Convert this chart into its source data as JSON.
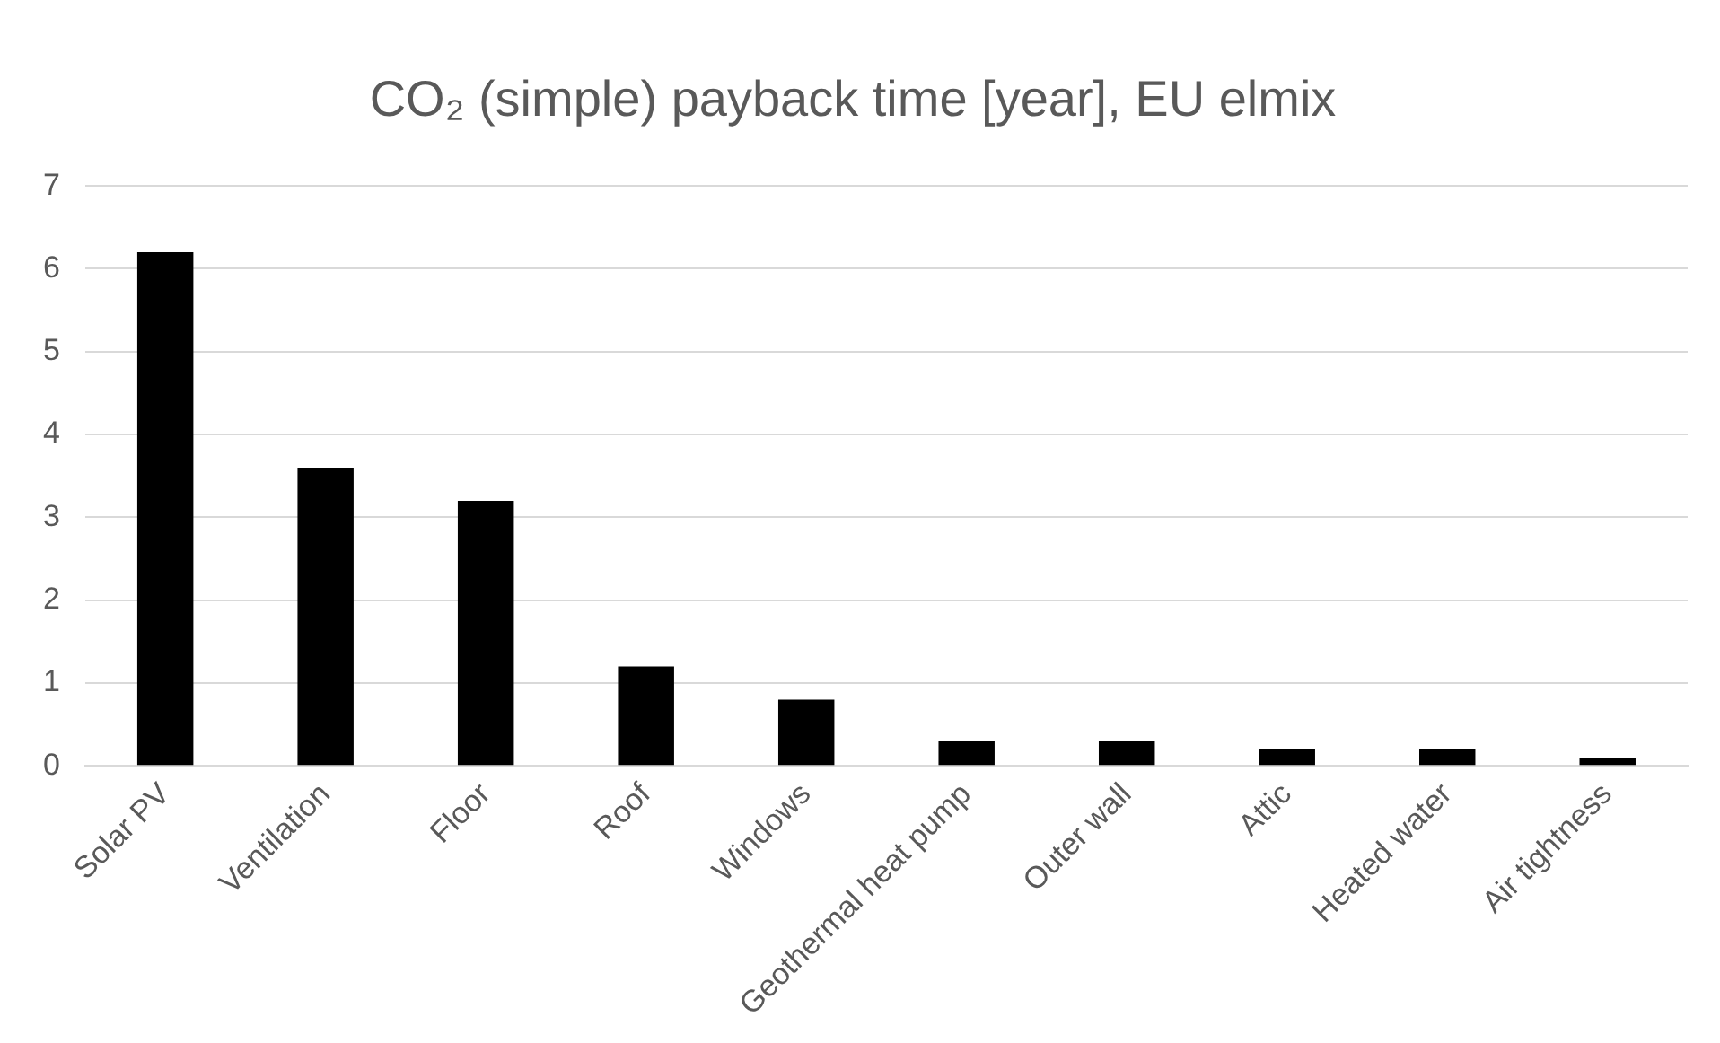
{
  "chart_data": {
    "type": "bar",
    "title": "CO₂ (simple) payback time [year], EU elmix",
    "categories": [
      "Solar PV",
      "Ventilation",
      "Floor",
      "Roof",
      "Windows",
      "Geothermal heat pump",
      "Outer wall",
      "Attic",
      "Heated water",
      "Air tightness"
    ],
    "values": [
      6.2,
      3.6,
      3.2,
      1.2,
      0.8,
      0.3,
      0.3,
      0.2,
      0.2,
      0.1
    ],
    "color": "#000000",
    "ylim": [
      0,
      7
    ],
    "yticks": [
      0,
      1,
      2,
      3,
      4,
      5,
      6,
      7
    ],
    "grid": "y"
  }
}
